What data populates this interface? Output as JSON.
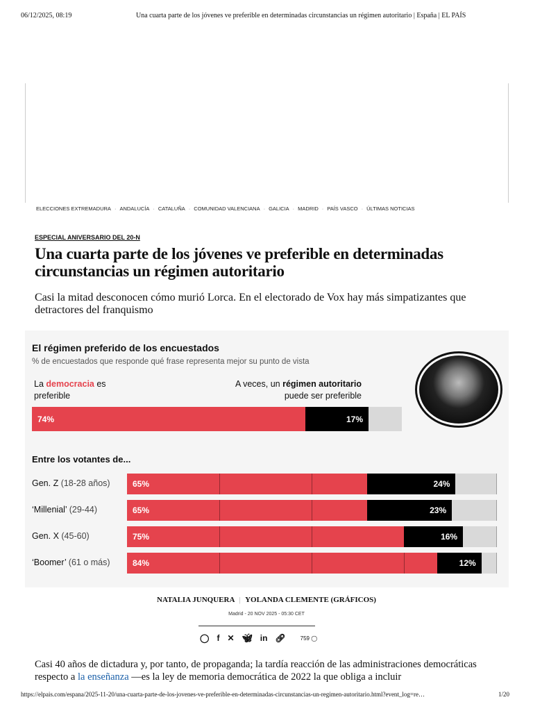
{
  "print_header": {
    "datetime": "06/12/2025, 08:19",
    "page_title": "Una cuarta parte de los jóvenes ve preferible en determinadas circunstancias un régimen autoritario | España | EL PAÍS"
  },
  "nav": [
    "ELECCIONES EXTREMADURA",
    "ANDALUCÍA",
    "CATALUÑA",
    "COMUNIDAD VALENCIANA",
    "GALICIA",
    "MADRID",
    "PAÍS VASCO",
    "ÚLTIMAS NOTICIAS"
  ],
  "article": {
    "kicker": "ESPECIAL ANIVERSARIO DEL 20-N",
    "title": "Una cuarta parte de los jóvenes ve preferible en determinadas circunstancias un régimen autoritario",
    "subtitle": "Casi la mitad desconocen cómo murió Lorca. En el electorado de Vox hay más simpatizantes que detractores del franquismo",
    "authors": [
      "NATALIA JUNQUERA",
      "YOLANDA CLEMENTE (GRÁFICOS)"
    ],
    "byline_sep": "|",
    "dateline": "Madrid - 20 NOV 2025 - 05:30 CET",
    "comments": "759",
    "body_pre": "Casi 40 años de dictadura y, por tanto, de propaganda; la tardía reacción de las administraciones democráticas respecto a ",
    "body_link": "la enseñanza",
    "body_post": " —es la ley de memoria democrática de 2022 la que obliga a incluir"
  },
  "chart_data": {
    "type": "bar",
    "stacked": true,
    "orientation": "horizontal",
    "title": "El régimen preferido de los encuestados",
    "subtitle": "% de encuestados que responde qué frase representa mejor su punto de vista",
    "legend": {
      "democracy_pre": "La ",
      "democracy_word": "democracia",
      "democracy_post": " es",
      "democracy_line2": "preferible",
      "auth_pre": "A veces, un ",
      "auth_word": "régimen autoritario",
      "auth_line2": "puede ser preferible"
    },
    "colors": {
      "democracia": "#e5434d",
      "autoritario": "#000000",
      "resto": "#d9d9d9"
    },
    "total": {
      "democracia": 74,
      "autoritario": 17
    },
    "group_heading": "Entre los votantes de...",
    "categories": [
      {
        "name": "Gen. Z",
        "range": " (18-28 años)"
      },
      {
        "name": "‘Millenial’",
        "range": " (29-44)"
      },
      {
        "name": "Gen. X",
        "range": " (45-60)"
      },
      {
        "name": "‘Boomer’",
        "range": " (61 o más)"
      }
    ],
    "series": [
      {
        "name": "democracia",
        "values": [
          65,
          65,
          75,
          84
        ]
      },
      {
        "name": "autoritario",
        "values": [
          24,
          23,
          16,
          12
        ]
      }
    ],
    "xlim": [
      0,
      100
    ],
    "grid": true
  },
  "footer": {
    "url": "https://elpais.com/espana/2025-11-20/una-cuarta-parte-de-los-jovenes-ve-preferible-en-determinadas-circunstancias-un-regimen-autoritario.html?event_log=re…",
    "page": "1/20"
  }
}
